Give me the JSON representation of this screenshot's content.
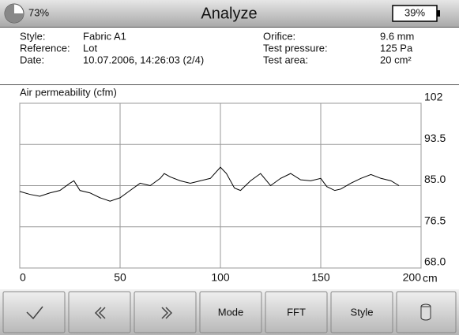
{
  "header": {
    "status": "73%",
    "title": "Analyze",
    "battery": "39%"
  },
  "info": {
    "left": [
      {
        "label": "Style:",
        "value": "Fabric A1"
      },
      {
        "label": "Reference:",
        "value": "Lot"
      },
      {
        "label": "Date:",
        "value": "10.07.2006, 14:26:03 (2/4)"
      }
    ],
    "right": [
      {
        "label": "Orifice:",
        "value": "9.6 mm"
      },
      {
        "label": "Test pressure:",
        "value": "125 Pa"
      },
      {
        "label": "Test area:",
        "value": "20 cm²"
      }
    ]
  },
  "chart_data": {
    "type": "line",
    "title": "Air permeability (cfm)",
    "x_label": "cm",
    "x": [
      0,
      5,
      10,
      15,
      20,
      25,
      27,
      30,
      35,
      40,
      45,
      50,
      55,
      60,
      65,
      70,
      72,
      75,
      80,
      85,
      90,
      95,
      100,
      103,
      107,
      110,
      115,
      120,
      125,
      130,
      135,
      140,
      145,
      150,
      153,
      157,
      160,
      165,
      170,
      175,
      180,
      185,
      189
    ],
    "series": [
      {
        "color": "#000000",
        "values": [
          83.8,
          83.2,
          82.8,
          83.5,
          84.0,
          85.5,
          86.0,
          84.0,
          83.5,
          82.5,
          81.8,
          82.5,
          84.0,
          85.5,
          85.0,
          86.5,
          87.5,
          86.8,
          86.0,
          85.5,
          86.0,
          86.5,
          88.8,
          87.5,
          84.5,
          84.0,
          86.0,
          87.5,
          85.0,
          86.5,
          87.5,
          86.2,
          86.0,
          86.5,
          84.8,
          84.0,
          84.3,
          85.5,
          86.5,
          87.3,
          86.5,
          86.0,
          85.0
        ]
      }
    ],
    "xlim": [
      0,
      200
    ],
    "ylim": [
      68,
      102
    ],
    "xticks": [
      0,
      50,
      100,
      150,
      200
    ],
    "yticks": [
      {
        "value": 68,
        "label": "68.0"
      },
      76.5,
      {
        "value": 85,
        "label": "85.0"
      },
      93.5,
      102
    ],
    "grid": true
  },
  "buttons": [
    "Mode",
    "FFT",
    "Style"
  ]
}
